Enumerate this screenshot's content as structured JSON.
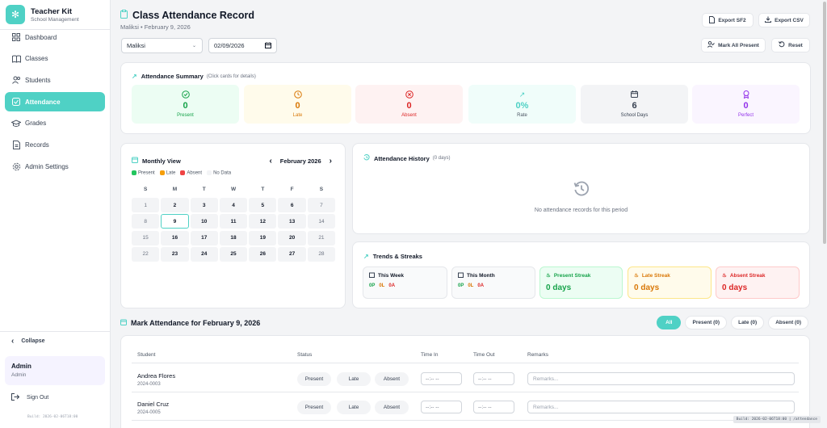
{
  "brand": {
    "title": "Teacher Kit",
    "subtitle": "School Management"
  },
  "nav": [
    {
      "label": "Dashboard",
      "icon": "grid-icon"
    },
    {
      "label": "Classes",
      "icon": "book-icon"
    },
    {
      "label": "Students",
      "icon": "users-icon"
    },
    {
      "label": "Attendance",
      "icon": "check-square-icon",
      "active": true
    },
    {
      "label": "Grades",
      "icon": "graduation-cap-icon"
    },
    {
      "label": "Records",
      "icon": "file-icon"
    },
    {
      "label": "Admin Settings",
      "icon": "gear-icon"
    }
  ],
  "sidebar_footer": {
    "collapse": "Collapse",
    "user_name": "Admin",
    "user_role": "Admin",
    "signout": "Sign Out",
    "build": "Build: 2026-02-06T18:00"
  },
  "header": {
    "title": "Class Attendance Record",
    "subtitle": "Maliksi • February 9, 2026"
  },
  "actions": {
    "export_sf2": "Export SF2",
    "export_csv": "Export CSV",
    "mark_all": "Mark All Present",
    "reset": "Reset"
  },
  "filters_top": {
    "class": "Maliksi",
    "date": "02/09/2026"
  },
  "summary": {
    "title": "Attendance Summary",
    "hint": "(Click cards for details)",
    "cards": [
      {
        "value": "0",
        "label": "Present",
        "icon": "check-circle-icon"
      },
      {
        "value": "0",
        "label": "Late",
        "icon": "clock-icon"
      },
      {
        "value": "0",
        "label": "Absent",
        "icon": "x-circle-icon"
      },
      {
        "value": "0%",
        "label": "Rate",
        "icon": "trending-up-icon"
      },
      {
        "value": "6",
        "label": "School Days",
        "icon": "calendar-icon"
      },
      {
        "value": "0",
        "label": "Perfect",
        "icon": "award-icon"
      }
    ]
  },
  "calendar": {
    "title": "Monthly View",
    "month": "February 2026",
    "legend": [
      "Present",
      "Late",
      "Absent",
      "No Data"
    ],
    "weekdays": [
      "S",
      "M",
      "T",
      "W",
      "T",
      "F",
      "S"
    ],
    "days": [
      "1",
      "2",
      "3",
      "4",
      "5",
      "6",
      "7",
      "8",
      "9",
      "10",
      "11",
      "12",
      "13",
      "14",
      "15",
      "16",
      "17",
      "18",
      "19",
      "20",
      "21",
      "22",
      "23",
      "24",
      "25",
      "26",
      "27",
      "28"
    ],
    "today": "9"
  },
  "history": {
    "title": "Attendance History",
    "count": "(0 days)",
    "empty": "No attendance records for this period"
  },
  "trends": {
    "title": "Trends & Streaks",
    "this_week": {
      "label": "This Week",
      "p": "0P",
      "l": "0L",
      "a": "0A"
    },
    "this_month": {
      "label": "This Month",
      "p": "0P",
      "l": "0L",
      "a": "0A"
    },
    "present_streak": {
      "label": "Present Streak",
      "value": "0 days"
    },
    "late_streak": {
      "label": "Late Streak",
      "value": "0 days"
    },
    "absent_streak": {
      "label": "Absent Streak",
      "value": "0 days"
    }
  },
  "mark": {
    "title": "Mark Attendance for February 9, 2026",
    "filters": [
      "All",
      "Present (0)",
      "Late (0)",
      "Absent (0)"
    ],
    "columns": [
      "Student",
      "Status",
      "Time In",
      "Time Out",
      "Remarks"
    ],
    "status_options": [
      "Present",
      "Late",
      "Absent"
    ],
    "time_placeholder": "--:-- --",
    "remarks_placeholder": "Remarks...",
    "students": [
      {
        "name": "Andrea Flores",
        "id": "2024-0003"
      },
      {
        "name": "Daniel Cruz",
        "id": "2024-0005"
      }
    ]
  },
  "build_badge": "Build: 2026-02-06T18:00 | /attendance",
  "colors": {
    "accent": "#4fd1c5",
    "present": "#16a34a",
    "late": "#d97706",
    "absent": "#dc2626",
    "perfect": "#9333ea"
  }
}
